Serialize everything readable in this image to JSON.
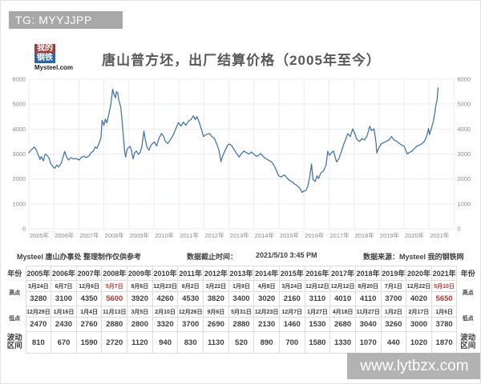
{
  "topbar": {
    "text": "TG: MYYJJPP"
  },
  "logo": {
    "block_top": "我的",
    "block_bottom": "钢铁",
    "caption": "Mysteel.com"
  },
  "header": {
    "title": "唐山普方坯，出厂结算价格（2005年至今）"
  },
  "chart_data": {
    "type": "line",
    "title": "唐山普方坯，出厂结算价格（2005年至今）",
    "xlabel": "",
    "ylabel": "",
    "ylim": [
      0,
      6000
    ],
    "y_ticks": [
      0,
      1000,
      2000,
      3000,
      4000,
      5000,
      6000
    ],
    "x_tick_labels": [
      "2005年",
      "2006年",
      "2007年",
      "2008年",
      "2009年",
      "2010年",
      "2011年",
      "2012年",
      "2013年",
      "2014年",
      "2015年",
      "2016年",
      "2017年",
      "2018年",
      "2019年",
      "2020年",
      "2021年"
    ],
    "grid": true,
    "legend_position": "none",
    "line_color": "#4577a5",
    "grid_color": "#e9edf3",
    "axis_label_color": "#8a8a8a",
    "series": [
      {
        "name": "唐山普方坯出厂结算价格",
        "points": [
          [
            2005.0,
            3050
          ],
          [
            2005.08,
            3150
          ],
          [
            2005.22,
            3280
          ],
          [
            2005.3,
            3150
          ],
          [
            2005.38,
            2950
          ],
          [
            2005.45,
            2780
          ],
          [
            2005.5,
            2900
          ],
          [
            2005.58,
            2720
          ],
          [
            2005.65,
            3000
          ],
          [
            2005.72,
            2950
          ],
          [
            2005.8,
            2850
          ],
          [
            2005.88,
            2600
          ],
          [
            2005.99,
            2470
          ],
          [
            2006.04,
            2430
          ],
          [
            2006.12,
            2560
          ],
          [
            2006.2,
            2480
          ],
          [
            2006.3,
            2650
          ],
          [
            2006.43,
            3100
          ],
          [
            2006.5,
            2900
          ],
          [
            2006.58,
            2760
          ],
          [
            2006.68,
            2850
          ],
          [
            2006.78,
            2800
          ],
          [
            2006.88,
            2820
          ],
          [
            2006.95,
            2790
          ],
          [
            2007.01,
            2760
          ],
          [
            2007.1,
            2870
          ],
          [
            2007.2,
            2910
          ],
          [
            2007.3,
            2860
          ],
          [
            2007.4,
            2920
          ],
          [
            2007.5,
            3060
          ],
          [
            2007.58,
            3120
          ],
          [
            2007.65,
            3280
          ],
          [
            2007.72,
            3230
          ],
          [
            2007.8,
            3420
          ],
          [
            2007.88,
            3650
          ],
          [
            2007.93,
            4350
          ],
          [
            2008.0,
            4150
          ],
          [
            2008.06,
            4400
          ],
          [
            2008.12,
            4250
          ],
          [
            2008.2,
            4600
          ],
          [
            2008.28,
            5000
          ],
          [
            2008.35,
            5600
          ],
          [
            2008.4,
            5400
          ],
          [
            2008.46,
            5250
          ],
          [
            2008.5,
            5500
          ],
          [
            2008.55,
            5450
          ],
          [
            2008.6,
            5150
          ],
          [
            2008.68,
            4850
          ],
          [
            2008.72,
            4400
          ],
          [
            2008.78,
            3700
          ],
          [
            2008.83,
            3100
          ],
          [
            2008.87,
            2880
          ],
          [
            2008.92,
            3150
          ],
          [
            2008.97,
            3250
          ],
          [
            2009.05,
            3300
          ],
          [
            2009.1,
            3150
          ],
          [
            2009.17,
            2800
          ],
          [
            2009.23,
            3050
          ],
          [
            2009.3,
            3120
          ],
          [
            2009.38,
            2980
          ],
          [
            2009.45,
            3060
          ],
          [
            2009.52,
            3300
          ],
          [
            2009.6,
            3920
          ],
          [
            2009.65,
            3600
          ],
          [
            2009.72,
            3280
          ],
          [
            2009.8,
            3150
          ],
          [
            2009.88,
            3350
          ],
          [
            2009.95,
            3420
          ],
          [
            2010.02,
            3480
          ],
          [
            2010.11,
            3320
          ],
          [
            2010.2,
            3620
          ],
          [
            2010.3,
            3820
          ],
          [
            2010.38,
            3720
          ],
          [
            2010.45,
            3520
          ],
          [
            2010.55,
            3420
          ],
          [
            2010.65,
            3560
          ],
          [
            2010.75,
            3720
          ],
          [
            2010.85,
            3950
          ],
          [
            2010.98,
            4260
          ],
          [
            2011.08,
            4120
          ],
          [
            2011.18,
            4280
          ],
          [
            2011.28,
            4150
          ],
          [
            2011.38,
            4320
          ],
          [
            2011.48,
            4380
          ],
          [
            2011.58,
            4530
          ],
          [
            2011.65,
            4380
          ],
          [
            2011.72,
            4500
          ],
          [
            2011.8,
            4300
          ],
          [
            2011.88,
            4050
          ],
          [
            2011.98,
            3700
          ],
          [
            2012.08,
            3780
          ],
          [
            2012.22,
            3820
          ],
          [
            2012.32,
            3700
          ],
          [
            2012.42,
            3620
          ],
          [
            2012.52,
            3380
          ],
          [
            2012.6,
            3150
          ],
          [
            2012.68,
            2690
          ],
          [
            2012.76,
            2950
          ],
          [
            2012.85,
            3150
          ],
          [
            2012.95,
            3350
          ],
          [
            2013.02,
            3400
          ],
          [
            2013.12,
            3320
          ],
          [
            2013.22,
            3150
          ],
          [
            2013.32,
            3000
          ],
          [
            2013.41,
            2880
          ],
          [
            2013.5,
            3020
          ],
          [
            2013.6,
            3120
          ],
          [
            2013.7,
            3050
          ],
          [
            2013.8,
            3000
          ],
          [
            2013.9,
            3080
          ],
          [
            2014.0,
            2990
          ],
          [
            2014.1,
            2900
          ],
          [
            2014.2,
            2960
          ],
          [
            2014.27,
            3020
          ],
          [
            2014.4,
            2870
          ],
          [
            2014.5,
            2800
          ],
          [
            2014.6,
            2740
          ],
          [
            2014.7,
            2690
          ],
          [
            2014.8,
            2540
          ],
          [
            2014.9,
            2340
          ],
          [
            2014.98,
            2130
          ],
          [
            2015.08,
            2080
          ],
          [
            2015.22,
            2160
          ],
          [
            2015.32,
            2040
          ],
          [
            2015.42,
            1940
          ],
          [
            2015.52,
            1890
          ],
          [
            2015.62,
            1800
          ],
          [
            2015.72,
            1740
          ],
          [
            2015.82,
            1640
          ],
          [
            2015.93,
            1460
          ],
          [
            2016.0,
            1520
          ],
          [
            2016.07,
            1530
          ],
          [
            2016.15,
            1700
          ],
          [
            2016.23,
            2100
          ],
          [
            2016.3,
            2600
          ],
          [
            2016.36,
            1980
          ],
          [
            2016.45,
            1900
          ],
          [
            2016.52,
            2120
          ],
          [
            2016.58,
            2020
          ],
          [
            2016.68,
            2250
          ],
          [
            2016.78,
            2320
          ],
          [
            2016.88,
            2550
          ],
          [
            2016.95,
            3110
          ],
          [
            2017.02,
            2950
          ],
          [
            2017.1,
            3050
          ],
          [
            2017.18,
            3120
          ],
          [
            2017.3,
            2680
          ],
          [
            2017.4,
            2820
          ],
          [
            2017.5,
            3120
          ],
          [
            2017.6,
            3420
          ],
          [
            2017.68,
            3620
          ],
          [
            2017.75,
            3820
          ],
          [
            2017.85,
            3700
          ],
          [
            2017.95,
            4010
          ],
          [
            2018.03,
            3820
          ],
          [
            2018.12,
            3580
          ],
          [
            2018.22,
            3500
          ],
          [
            2018.32,
            3620
          ],
          [
            2018.42,
            3560
          ],
          [
            2018.52,
            3720
          ],
          [
            2018.63,
            4110
          ],
          [
            2018.7,
            3940
          ],
          [
            2018.8,
            4010
          ],
          [
            2018.88,
            3450
          ],
          [
            2018.91,
            3040
          ],
          [
            2019.0,
            3260
          ],
          [
            2019.1,
            3420
          ],
          [
            2019.2,
            3460
          ],
          [
            2019.3,
            3520
          ],
          [
            2019.4,
            3560
          ],
          [
            2019.5,
            3700
          ],
          [
            2019.6,
            3560
          ],
          [
            2019.7,
            3520
          ],
          [
            2019.8,
            3430
          ],
          [
            2019.9,
            3360
          ],
          [
            2020.0,
            3320
          ],
          [
            2020.13,
            3000
          ],
          [
            2020.22,
            3060
          ],
          [
            2020.32,
            3120
          ],
          [
            2020.42,
            3220
          ],
          [
            2020.52,
            3320
          ],
          [
            2020.62,
            3360
          ],
          [
            2020.72,
            3420
          ],
          [
            2020.82,
            3520
          ],
          [
            2020.9,
            3700
          ],
          [
            2020.98,
            4020
          ],
          [
            2021.02,
            3780
          ],
          [
            2021.1,
            4050
          ],
          [
            2021.17,
            4300
          ],
          [
            2021.23,
            4650
          ],
          [
            2021.28,
            5000
          ],
          [
            2021.32,
            5150
          ],
          [
            2021.36,
            5650
          ]
        ]
      }
    ]
  },
  "footer": {
    "left": "Mysteel 唐山办事处 整理制作仅供参考",
    "cutoff_label": "数据截止时间：",
    "cutoff_value": "2021/5/10 3:45 PM",
    "source": "数据来源：Mysteel 我的钢铁网"
  },
  "summary_table": {
    "row_labels": {
      "year": "年份",
      "high": "高点",
      "low": "低点",
      "range": "波动区间"
    },
    "years": [
      "2005年",
      "2006年",
      "2007年",
      "2008年",
      "2009年",
      "2010年",
      "2011年",
      "2012年",
      "2013年",
      "2014年",
      "2015年",
      "2016年",
      "2017年",
      "2018年",
      "2019年",
      "2020年",
      "2021年"
    ],
    "high_dates": [
      "3月24日",
      "6月7日",
      "12月6日",
      "5月7日",
      "8月6日",
      "12月23日",
      "8月2日",
      "3月22日",
      "1月9日",
      "4月8日",
      "3月24日",
      "12月12日",
      "12月12日",
      "8月20日",
      "7月1日",
      "12月22日",
      "5月10日"
    ],
    "high_values": [
      "3280",
      "3100",
      "4350",
      "5600",
      "3920",
      "4260",
      "4530",
      "3820",
      "3400",
      "3020",
      "2160",
      "3110",
      "4010",
      "4110",
      "3700",
      "4020",
      "5650"
    ],
    "low_dates": [
      "12月29日",
      "1月16日",
      "1月4日",
      "11月13日",
      "3月5日",
      "2月10日",
      "12月26日",
      "9月6日",
      "5月31日",
      "12月23日",
      "12月7日",
      "1月27日",
      "4月18日",
      "11月27日",
      "1月2日",
      "2月17日",
      "1月6日"
    ],
    "low_values": [
      "2470",
      "2430",
      "2760",
      "2880",
      "2800",
      "3320",
      "3700",
      "2690",
      "2880",
      "2130",
      "1460",
      "1530",
      "2680",
      "3040",
      "3260",
      "3000",
      "3780"
    ],
    "range_values": [
      "810",
      "670",
      "1590",
      "2720",
      "1120",
      "940",
      "830",
      "1130",
      "520",
      "890",
      "700",
      "1580",
      "1330",
      "1070",
      "440",
      "1020",
      "1870"
    ],
    "highlight_color": "#b23b32",
    "highlight_year_indices": [
      3,
      16
    ]
  },
  "watermark": {
    "text": "www.lytbzx.com"
  }
}
